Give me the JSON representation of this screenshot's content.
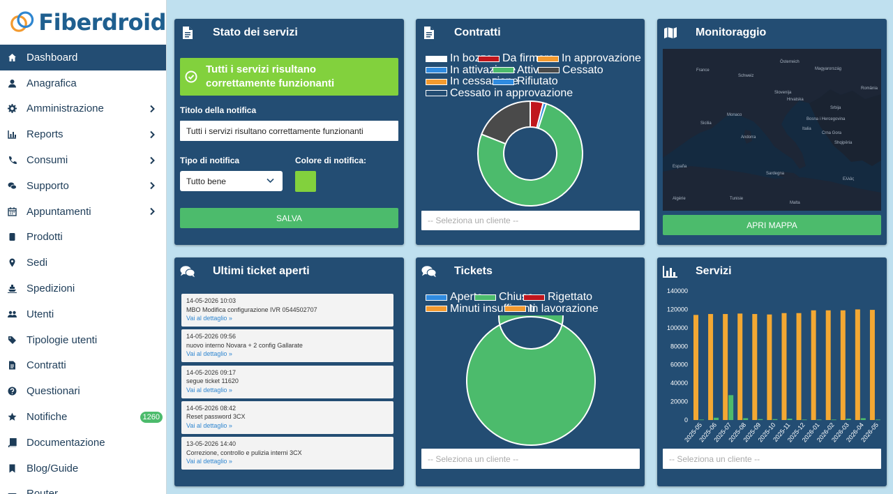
{
  "app": {
    "logo_text": "Fiberdroid"
  },
  "sidebar": {
    "items": [
      {
        "label": "Dashboard",
        "icon": "home-icon",
        "active": true,
        "chevron": false
      },
      {
        "label": "Anagrafica",
        "icon": "user-icon",
        "chevron": false
      },
      {
        "label": "Amministrazione",
        "icon": "gear-icon",
        "chevron": true
      },
      {
        "label": "Reports",
        "icon": "bar-chart-icon",
        "chevron": true
      },
      {
        "label": "Consumi",
        "icon": "phone-icon",
        "chevron": true
      },
      {
        "label": "Supporto",
        "icon": "chat-icon",
        "chevron": true
      },
      {
        "label": "Appuntamenti",
        "icon": "calendar-icon",
        "chevron": true
      },
      {
        "label": "Prodotti",
        "icon": "box-icon",
        "chevron": false
      },
      {
        "label": "Sedi",
        "icon": "map-marker-icon",
        "chevron": false
      },
      {
        "label": "Spedizioni",
        "icon": "ship-icon",
        "chevron": false
      },
      {
        "label": "Utenti",
        "icon": "users-icon",
        "chevron": false
      },
      {
        "label": "Tipologie utenti",
        "icon": "tags-icon",
        "chevron": false
      },
      {
        "label": "Contratti",
        "icon": "document-icon",
        "chevron": false
      },
      {
        "label": "Questionari",
        "icon": "question-icon",
        "chevron": false
      },
      {
        "label": "Notifiche",
        "icon": "star-icon",
        "chevron": false,
        "badge": "1260"
      },
      {
        "label": "Documentazione",
        "icon": "book-icon",
        "chevron": false
      },
      {
        "label": "Blog/Guide",
        "icon": "bookmark-icon",
        "chevron": false
      },
      {
        "label": "Router",
        "icon": "router-icon",
        "chevron": false
      }
    ]
  },
  "stato": {
    "title": "Stato dei servizi",
    "status_message": "Tutti i servizi risultano correttamente funzionanti",
    "titolo_label": "Titolo della notifica",
    "titolo_value": "Tutti i servizi risultano correttamente funzionanti",
    "tipo_label": "Tipo di notifica",
    "tipo_value": "Tutto bene",
    "colore_label": "Colore di notifica:",
    "colore_value": "#82d13d",
    "save_label": "SALVA"
  },
  "contratti": {
    "title": "Contratti",
    "select_placeholder": "-- Seleziona un cliente --",
    "chart_data": {
      "type": "pie",
      "series": [
        {
          "name": "In bozza",
          "value": 0,
          "color": "#ffffff"
        },
        {
          "name": "Da firmare",
          "value": 4,
          "color": "#c0161d"
        },
        {
          "name": "In approvazione",
          "value": 0,
          "color": "#f39a2f"
        },
        {
          "name": "In attivazione",
          "value": 1,
          "color": "#2f8be0"
        },
        {
          "name": "Attivo",
          "value": 76,
          "color": "#4cbb6c"
        },
        {
          "name": "Cessato",
          "value": 19,
          "color": "#4a4a4a"
        },
        {
          "name": "In cessazione",
          "value": 0,
          "color": "#f39a2f"
        },
        {
          "name": "Rifiutato",
          "value": 0,
          "color": "#2f8be0"
        },
        {
          "name": "Cessato in approvazione",
          "value": 0,
          "color": "#234d73"
        }
      ]
    }
  },
  "monitoraggio": {
    "title": "Monitoraggio",
    "button_label": "APRI MAPPA",
    "map_labels": [
      "France",
      "Italia",
      "Hrvatska",
      "Bosna i Hercegovina",
      "Crna Gora",
      "Shqipëria",
      "Ελλάς",
      "España",
      "Algérie",
      "Tunisie",
      "Malta",
      "Slovenija",
      "Srbija",
      "Österreich",
      "Magyarország",
      "România",
      "Schweiz",
      "Monaco",
      "Andorra",
      "Sardegna",
      "Sicilia"
    ]
  },
  "ticket_aperti": {
    "title": "Ultimi ticket aperti",
    "link_label": "Vai al dettaglio »",
    "items": [
      {
        "date": "14-05-2026 10:03",
        "text": "MBO Modifica configurazione IVR 0544502707"
      },
      {
        "date": "14-05-2026 09:56",
        "text": "nuovo interno Novara + 2 config Gallarate"
      },
      {
        "date": "14-05-2026 09:17",
        "text": "segue ticket 11620"
      },
      {
        "date": "14-05-2026 08:42",
        "text": "Reset password 3CX"
      },
      {
        "date": "13-05-2026 14:40",
        "text": "Correzione, controllo e pulizia interni 3CX"
      }
    ]
  },
  "tickets": {
    "title": "Tickets",
    "select_placeholder": "-- Seleziona un cliente --",
    "chart_data": {
      "type": "pie",
      "series": [
        {
          "name": "Aperto",
          "value": 0,
          "color": "#2f8be0"
        },
        {
          "name": "Chiuso",
          "value": 100,
          "color": "#4cbb6c"
        },
        {
          "name": "Rigettato",
          "value": 0,
          "color": "#c0161d"
        },
        {
          "name": "Minuti insufficenti",
          "value": 0,
          "color": "#f39a2f"
        },
        {
          "name": "In lavorazione",
          "value": 0,
          "color": "#f39a2f"
        }
      ]
    }
  },
  "servizi": {
    "title": "Servizi",
    "select_placeholder": "-- Seleziona un cliente --",
    "chart_data": {
      "type": "bar",
      "categories": [
        "2025-05",
        "2025-06",
        "2025-07",
        "2025-08",
        "2025-09",
        "2025-10",
        "2025-11",
        "2025-12",
        "2026-01",
        "2026-02",
        "2026-03",
        "2026-04",
        "2026-05"
      ],
      "series": [
        {
          "values": [
            114000,
            115000,
            115000,
            115500,
            115000,
            114500,
            116000,
            116000,
            119000,
            119000,
            119000,
            120000,
            119500
          ],
          "color": "#f3a833"
        },
        {
          "values": [
            500,
            2500,
            27000,
            2000,
            1000,
            1000,
            1500,
            500,
            500,
            500,
            1500,
            2000,
            500
          ],
          "color": "#4cbb6c"
        }
      ],
      "yticks": [
        "0",
        "20000",
        "40000",
        "60000",
        "80000",
        "100000",
        "120000",
        "140000"
      ],
      "ylim": [
        0,
        140000
      ]
    }
  }
}
